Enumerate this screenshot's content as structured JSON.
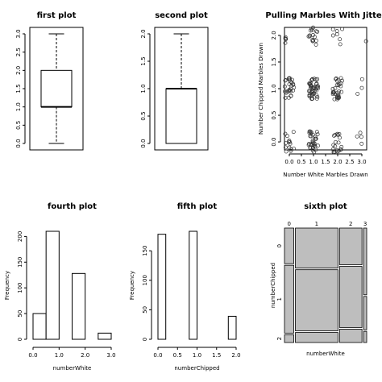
{
  "chart_data": [
    {
      "type": "box",
      "title": "first plot",
      "ylim": [
        0,
        3
      ],
      "yticks": [
        "0.0",
        "0.5",
        "1.0",
        "1.5",
        "2.0",
        "2.5",
        "3.0"
      ],
      "stats": {
        "min": 0,
        "q1": 1,
        "median": 1,
        "q3": 2,
        "max": 3
      }
    },
    {
      "type": "box",
      "title": "second plot",
      "ylim": [
        0,
        2
      ],
      "yticks": [
        "0.0",
        "0.5",
        "1.0",
        "1.5",
        "2.0"
      ],
      "stats": {
        "min": 0,
        "q1": 0,
        "median": 1,
        "q3": 1,
        "max": 2
      }
    },
    {
      "type": "scatter",
      "title": "Pulling Marbles With Jitter",
      "xlabel": "Number White Marbles Drawn",
      "ylabel": "Number Chipped Marbles Drawn",
      "xticks": [
        "0.0",
        "0.5",
        "1.0",
        "1.5",
        "2.0",
        "2.5",
        "3.0"
      ],
      "yticks": [
        "0.0",
        "0.5",
        "1.0",
        "1.5",
        "2.0"
      ],
      "xlim": [
        -0.2,
        3.2
      ],
      "ylim": [
        -0.15,
        2.15
      ],
      "clusters": [
        {
          "x": 0,
          "y": 0,
          "count": 14
        },
        {
          "x": 1,
          "y": 0,
          "count": 34
        },
        {
          "x": 2,
          "y": 0,
          "count": 20
        },
        {
          "x": 3,
          "y": 0,
          "count": 4
        },
        {
          "x": 0,
          "y": 1,
          "count": 28
        },
        {
          "x": 1,
          "y": 1,
          "count": 48
        },
        {
          "x": 2,
          "y": 1,
          "count": 32
        },
        {
          "x": 3,
          "y": 1,
          "count": 3
        },
        {
          "x": 0,
          "y": 2,
          "count": 5
        },
        {
          "x": 1,
          "y": 2,
          "count": 16
        },
        {
          "x": 2,
          "y": 2,
          "count": 7
        },
        {
          "x": 3,
          "y": 2,
          "count": 1
        }
      ]
    },
    {
      "type": "bar",
      "title": "fourth plot",
      "xlabel": "numberWhite",
      "ylabel": "Frequency",
      "xticks": [
        "0.0",
        "1.0",
        "2.0",
        "3.0"
      ],
      "yticks": [
        "0",
        "50",
        "100",
        "150",
        "200"
      ],
      "ylim": [
        0,
        210
      ],
      "bins": [
        [
          0,
          0.5,
          50
        ],
        [
          0.5,
          1,
          210
        ],
        [
          1,
          1.5,
          0
        ],
        [
          1.5,
          2,
          128
        ],
        [
          2,
          2.5,
          0
        ],
        [
          2.5,
          3,
          12
        ]
      ]
    },
    {
      "type": "bar",
      "title": "fifth plot",
      "xlabel": "numberChipped",
      "ylabel": "Frequency",
      "xticks": [
        "0.0",
        "0.5",
        "1.0",
        "1.5",
        "2.0"
      ],
      "yticks": [
        "0",
        "50",
        "100",
        "150"
      ],
      "ylim": [
        0,
        183
      ],
      "bins": [
        [
          0,
          0.2,
          178
        ],
        [
          0.2,
          0.4,
          0
        ],
        [
          0.4,
          0.6,
          0
        ],
        [
          0.6,
          0.8,
          0
        ],
        [
          0.8,
          1.0,
          183
        ],
        [
          1.0,
          1.2,
          0
        ],
        [
          1.2,
          1.4,
          0
        ],
        [
          1.4,
          1.6,
          0
        ],
        [
          1.6,
          1.8,
          0
        ],
        [
          1.8,
          2.0,
          39
        ]
      ]
    },
    {
      "type": "mosaic",
      "title": "sixth plot",
      "xlabel": "numberWhite",
      "ylabel": "numberChipped",
      "xcats": [
        "0",
        "1",
        "2",
        "3"
      ],
      "ycats": [
        "0",
        "1",
        "2"
      ],
      "column_widths": [
        0.12,
        0.55,
        0.29,
        0.04
      ],
      "column_fractions": [
        [
          0.32,
          0.61,
          0.07
        ],
        [
          0.36,
          0.55,
          0.09
        ],
        [
          0.33,
          0.55,
          0.12
        ],
        [
          0.6,
          0.3,
          0.1
        ]
      ],
      "fill_color": "#bebebe"
    }
  ]
}
